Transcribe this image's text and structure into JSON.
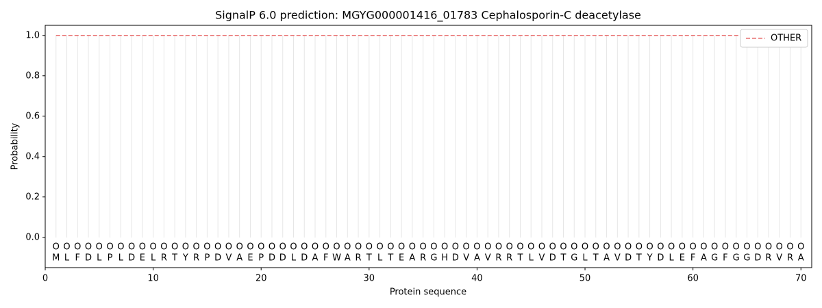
{
  "chart_data": {
    "type": "line",
    "title": "SignalP 6.0 prediction: MGYG000001416_01783 Cephalosporin-C deacetylase",
    "xlabel": "Protein sequence",
    "ylabel": "Probability",
    "x": [
      1,
      2,
      3,
      4,
      5,
      6,
      7,
      8,
      9,
      10,
      11,
      12,
      13,
      14,
      15,
      16,
      17,
      18,
      19,
      20,
      21,
      22,
      23,
      24,
      25,
      26,
      27,
      28,
      29,
      30,
      31,
      32,
      33,
      34,
      35,
      36,
      37,
      38,
      39,
      40,
      41,
      42,
      43,
      44,
      45,
      46,
      47,
      48,
      49,
      50,
      51,
      52,
      53,
      54,
      55,
      56,
      57,
      58,
      59,
      60,
      61,
      62,
      63,
      64,
      65,
      66,
      67,
      68,
      69,
      70
    ],
    "sequence": [
      "M",
      "L",
      "F",
      "D",
      "L",
      "P",
      "L",
      "D",
      "E",
      "L",
      "R",
      "T",
      "Y",
      "R",
      "P",
      "D",
      "V",
      "A",
      "E",
      "P",
      "D",
      "D",
      "L",
      "D",
      "A",
      "F",
      "W",
      "A",
      "R",
      "T",
      "L",
      "T",
      "E",
      "A",
      "R",
      "G",
      "H",
      "D",
      "V",
      "A",
      "V",
      "R",
      "R",
      "T",
      "L",
      "V",
      "D",
      "T",
      "G",
      "L",
      "T",
      "A",
      "V",
      "D",
      "T",
      "Y",
      "D",
      "L",
      "E",
      "F",
      "A",
      "G",
      "F",
      "G",
      "G",
      "D",
      "R",
      "V",
      "R",
      "A"
    ],
    "predicted_labels": [
      "O",
      "O",
      "O",
      "O",
      "O",
      "O",
      "O",
      "O",
      "O",
      "O",
      "O",
      "O",
      "O",
      "O",
      "O",
      "O",
      "O",
      "O",
      "O",
      "O",
      "O",
      "O",
      "O",
      "O",
      "O",
      "O",
      "O",
      "O",
      "O",
      "O",
      "O",
      "O",
      "O",
      "O",
      "O",
      "O",
      "O",
      "O",
      "O",
      "O",
      "O",
      "O",
      "O",
      "O",
      "O",
      "O",
      "O",
      "O",
      "O",
      "O",
      "O",
      "O",
      "O",
      "O",
      "O",
      "O",
      "O",
      "O",
      "O",
      "O",
      "O",
      "O",
      "O",
      "O",
      "O",
      "O",
      "O",
      "O",
      "O",
      "O"
    ],
    "series": [
      {
        "name": "OTHER",
        "color": "#e87070",
        "dashed": true,
        "values": [
          1,
          1,
          1,
          1,
          1,
          1,
          1,
          1,
          1,
          1,
          1,
          1,
          1,
          1,
          1,
          1,
          1,
          1,
          1,
          1,
          1,
          1,
          1,
          1,
          1,
          1,
          1,
          1,
          1,
          1,
          1,
          1,
          1,
          1,
          1,
          1,
          1,
          1,
          1,
          1,
          1,
          1,
          1,
          1,
          1,
          1,
          1,
          1,
          1,
          1,
          1,
          1,
          1,
          1,
          1,
          1,
          1,
          1,
          1,
          1,
          1,
          1,
          1,
          1,
          1,
          1,
          1,
          1,
          1,
          1
        ]
      }
    ],
    "xlim": [
      0,
      71
    ],
    "ylim": [
      -0.15,
      1.05
    ],
    "xticks": [
      0,
      10,
      20,
      30,
      40,
      50,
      60,
      70
    ],
    "yticks": [
      {
        "value": 0,
        "label": "0.0"
      },
      0.2,
      0.4,
      0.6,
      0.8,
      {
        "value": 1,
        "label": "1.0"
      }
    ],
    "legend": "upper right"
  }
}
